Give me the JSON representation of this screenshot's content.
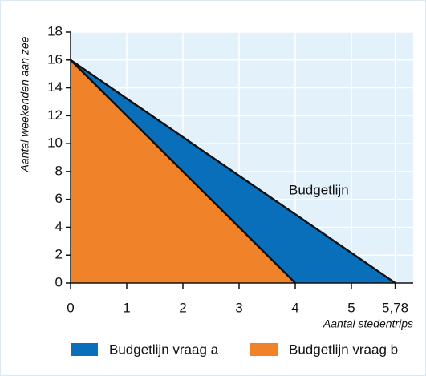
{
  "chart_data": {
    "type": "area",
    "annotation": "Budgetlijn",
    "x_label": "Aantal stedentrips",
    "y_label": "Aantal weekenden aan zee",
    "xlim": [
      0,
      6.1
    ],
    "ylim": [
      0,
      18
    ],
    "xticks": [
      0,
      1,
      2,
      3,
      4,
      5,
      {
        "value": 5.78,
        "label": "5,78"
      }
    ],
    "yticks": [
      0,
      2,
      4,
      6,
      8,
      10,
      12,
      14,
      16,
      18
    ],
    "grid": true,
    "legend": "bottom",
    "series": [
      {
        "name": "Budgetlijn vraag a",
        "color": "#0a6fba",
        "x": [
          0,
          5.78
        ],
        "values": [
          16,
          0
        ]
      },
      {
        "name": "Budgetlijn vraag b",
        "color": "#f0822a",
        "x": [
          0,
          4
        ],
        "values": [
          16,
          0
        ]
      }
    ]
  }
}
